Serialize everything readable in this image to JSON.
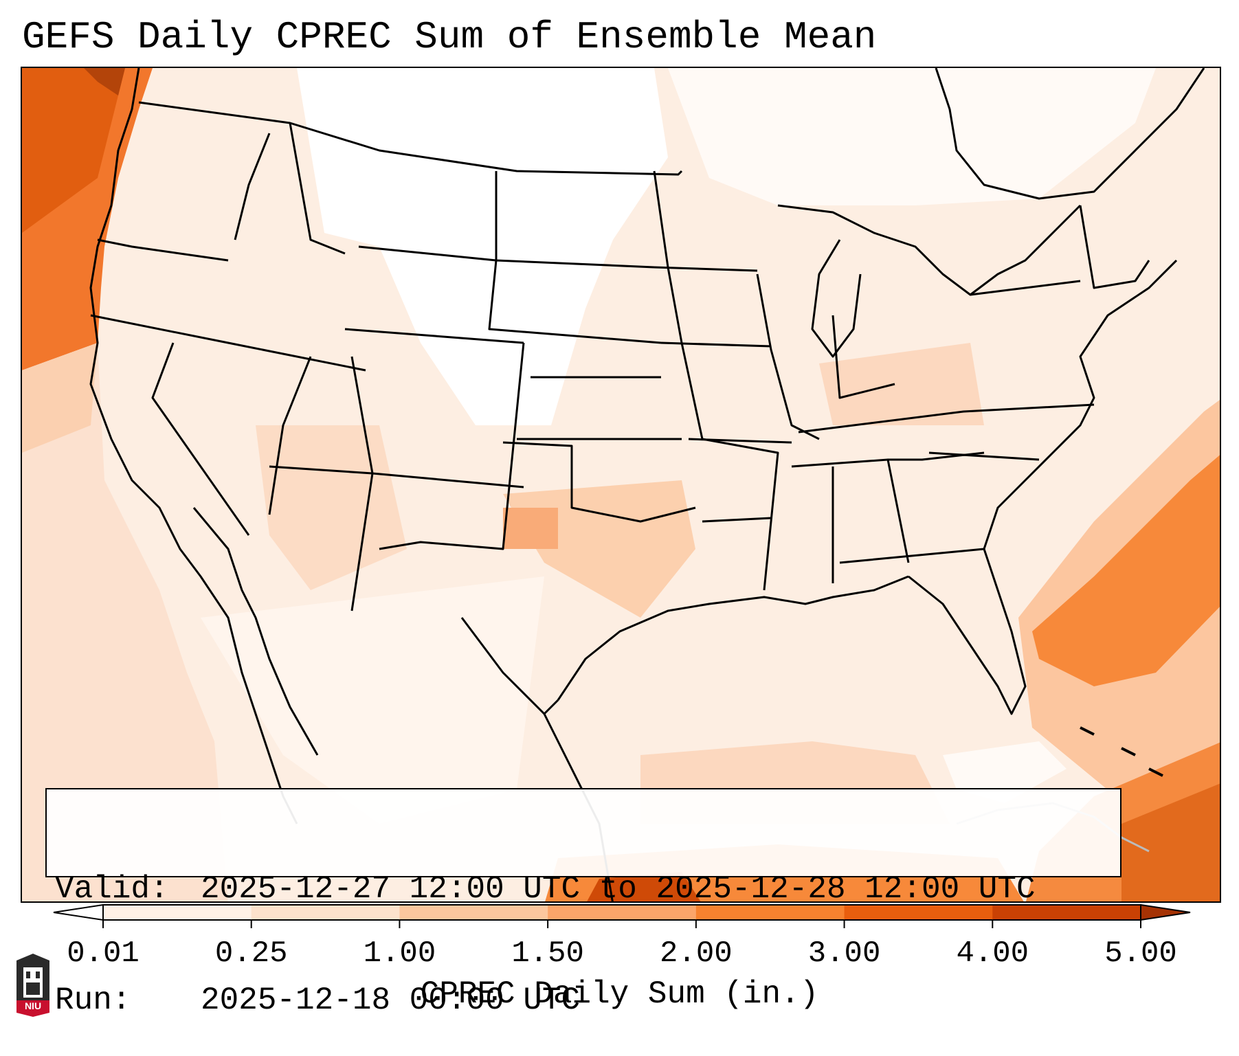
{
  "title": "GEFS Daily CPREC Sum of Ensemble Mean",
  "info": {
    "valid_label": "Valid:",
    "valid_value": "2025-12-27 12:00 UTC to 2025-12-28 12:00 UTC",
    "run_label": "Run:",
    "run_value": "2025-12-18 00:00 UTC"
  },
  "legend": {
    "label": "CPREC Daily Sum (in.)",
    "ticks": [
      "0.01",
      "0.25",
      "1.00",
      "1.50",
      "2.00",
      "3.00",
      "4.00",
      "5.00"
    ],
    "colors": [
      "#ffffff",
      "#fff1e6",
      "#fde2cc",
      "#fcc79e",
      "#fba56a",
      "#f7822f",
      "#e85e0e",
      "#c94104",
      "#a53204"
    ],
    "extend": "both"
  },
  "map": {
    "projection": "lambert-conformal",
    "region": "CONUS",
    "variable": "CPREC",
    "units": "in.",
    "heavy_areas": [
      "Pacific Northwest coast",
      "Western Atlantic off the Carolinas",
      "Caribbean"
    ]
  },
  "logo": {
    "text": "NIU",
    "color": "#c8102e",
    "icon": "university-tower-icon"
  }
}
